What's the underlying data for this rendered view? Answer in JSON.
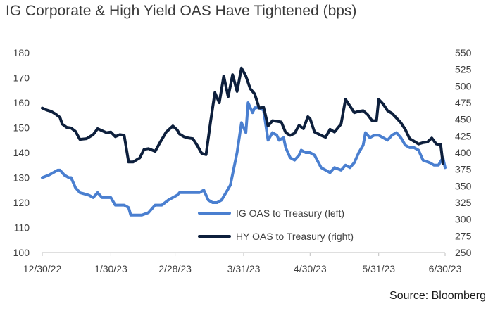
{
  "title": "IG Corporate & High Yield OAS Have Tightened (bps)",
  "source": "Source: Bloomberg",
  "chart_data": {
    "type": "line",
    "x_ticks": [
      "12/30/22",
      "1/30/23",
      "2/28/23",
      "3/31/23",
      "4/30/23",
      "5/31/23",
      "6/30/23"
    ],
    "y_left": {
      "range": [
        100,
        180
      ],
      "ticks": [
        100,
        110,
        120,
        130,
        140,
        150,
        160,
        170,
        180
      ]
    },
    "y_right": {
      "range": [
        250,
        550
      ],
      "ticks": [
        250,
        275,
        300,
        325,
        350,
        375,
        400,
        425,
        450,
        475,
        500,
        525,
        550
      ]
    },
    "grid": false,
    "legend_position": "bottom-center",
    "series": [
      {
        "name": "IG OAS to Treasury (left)",
        "axis": "left",
        "color": "#4a7fd0",
        "points": [
          [
            "12/30/22",
            130
          ],
          [
            "1/2/23",
            131
          ],
          [
            "1/4/23",
            132
          ],
          [
            "1/6/23",
            133
          ],
          [
            "1/7/23",
            133
          ],
          [
            "1/9/23",
            131
          ],
          [
            "1/11/23",
            130
          ],
          [
            "1/12/23",
            130
          ],
          [
            "1/14/23",
            126
          ],
          [
            "1/16/23",
            124
          ],
          [
            "1/20/23",
            123
          ],
          [
            "1/22/23",
            122
          ],
          [
            "1/24/23",
            124
          ],
          [
            "1/26/23",
            122
          ],
          [
            "1/28/23",
            122
          ],
          [
            "1/30/23",
            122
          ],
          [
            "2/1/23",
            119
          ],
          [
            "2/5/23",
            119
          ],
          [
            "2/7/23",
            118
          ],
          [
            "2/8/23",
            115
          ],
          [
            "2/13/23",
            115
          ],
          [
            "2/16/23",
            116
          ],
          [
            "2/19/23",
            119
          ],
          [
            "2/22/23",
            119
          ],
          [
            "2/25/23",
            121
          ],
          [
            "3/1/23",
            123
          ],
          [
            "3/2/23",
            124
          ],
          [
            "3/4/23",
            124
          ],
          [
            "3/7/23",
            124
          ],
          [
            "3/9/23",
            124
          ],
          [
            "3/11/23",
            124
          ],
          [
            "3/13/23",
            125
          ],
          [
            "3/15/23",
            121
          ],
          [
            "3/17/23",
            120
          ],
          [
            "3/19/23",
            120
          ],
          [
            "3/21/23",
            121
          ],
          [
            "3/23/23",
            124
          ],
          [
            "3/25/23",
            127
          ],
          [
            "3/28/23",
            140
          ],
          [
            "3/30/23",
            152
          ],
          [
            "4/1/23",
            148
          ],
          [
            "4/2/23",
            160
          ],
          [
            "4/4/23",
            156
          ],
          [
            "4/5/23",
            158
          ],
          [
            "4/7/23",
            158
          ],
          [
            "4/9/23",
            157
          ],
          [
            "4/11/23",
            145
          ],
          [
            "4/13/23",
            148
          ],
          [
            "4/15/23",
            147
          ],
          [
            "4/16/23",
            145
          ],
          [
            "4/18/23",
            146
          ],
          [
            "4/19/23",
            142
          ],
          [
            "4/21/23",
            138
          ],
          [
            "4/23/23",
            137
          ],
          [
            "4/25/23",
            139
          ],
          [
            "4/26/23",
            141
          ],
          [
            "4/28/23",
            140
          ],
          [
            "4/30/23",
            140
          ],
          [
            "5/2/23",
            139
          ],
          [
            "5/5/23",
            134
          ],
          [
            "5/7/23",
            133
          ],
          [
            "5/9/23",
            132
          ],
          [
            "5/11/23",
            134
          ],
          [
            "5/14/23",
            133
          ],
          [
            "5/16/23",
            135
          ],
          [
            "5/18/23",
            134
          ],
          [
            "5/20/23",
            136
          ],
          [
            "5/22/23",
            140
          ],
          [
            "5/24/23",
            143
          ],
          [
            "5/25/23",
            148
          ],
          [
            "5/27/23",
            146
          ],
          [
            "5/29/23",
            147
          ],
          [
            "5/31/23",
            147
          ],
          [
            "6/2/23",
            146
          ],
          [
            "6/4/23",
            145
          ],
          [
            "6/6/23",
            147
          ],
          [
            "6/8/23",
            148
          ],
          [
            "6/10/23",
            146
          ],
          [
            "6/12/23",
            143
          ],
          [
            "6/14/23",
            142
          ],
          [
            "6/16/23",
            142
          ],
          [
            "6/18/23",
            141
          ],
          [
            "6/20/23",
            137
          ],
          [
            "6/23/23",
            136
          ],
          [
            "6/25/23",
            135
          ],
          [
            "6/27/23",
            135
          ],
          [
            "6/29/23",
            138
          ],
          [
            "6/30/23",
            134
          ]
        ]
      },
      {
        "name": "HY OAS to Treasury (right)",
        "axis": "right",
        "color": "#0d1f3c",
        "points": [
          [
            "12/30/22",
            467
          ],
          [
            "1/1/23",
            464
          ],
          [
            "1/3/23",
            462
          ],
          [
            "1/5/23",
            458
          ],
          [
            "1/7/23",
            453
          ],
          [
            "1/8/23",
            443
          ],
          [
            "1/10/23",
            438
          ],
          [
            "1/12/23",
            437
          ],
          [
            "1/14/23",
            432
          ],
          [
            "1/16/23",
            420
          ],
          [
            "1/19/23",
            421
          ],
          [
            "1/22/23",
            427
          ],
          [
            "1/24/23",
            436
          ],
          [
            "1/26/23",
            433
          ],
          [
            "1/28/23",
            430
          ],
          [
            "1/30/23",
            431
          ],
          [
            "2/1/23",
            424
          ],
          [
            "2/3/23",
            427
          ],
          [
            "2/5/23",
            426
          ],
          [
            "2/7/23",
            386
          ],
          [
            "2/9/23",
            386
          ],
          [
            "2/12/23",
            392
          ],
          [
            "2/14/23",
            405
          ],
          [
            "2/16/23",
            406
          ],
          [
            "2/19/23",
            402
          ],
          [
            "2/21/23",
            414
          ],
          [
            "2/24/23",
            431
          ],
          [
            "2/27/23",
            440
          ],
          [
            "3/1/23",
            434
          ],
          [
            "3/2/23",
            428
          ],
          [
            "3/4/23",
            424
          ],
          [
            "3/6/23",
            422
          ],
          [
            "3/8/23",
            421
          ],
          [
            "3/10/23",
            411
          ],
          [
            "3/12/23",
            399
          ],
          [
            "3/14/23",
            397
          ],
          [
            "3/16/23",
            446
          ],
          [
            "3/18/23",
            490
          ],
          [
            "3/20/23",
            475
          ],
          [
            "3/22/23",
            515
          ],
          [
            "3/24/23",
            484
          ],
          [
            "3/26/23",
            517
          ],
          [
            "3/28/23",
            492
          ],
          [
            "3/30/23",
            527
          ],
          [
            "4/1/23",
            515
          ],
          [
            "4/3/23",
            496
          ],
          [
            "4/5/23",
            488
          ],
          [
            "4/7/23",
            467
          ],
          [
            "4/9/23",
            468
          ],
          [
            "4/11/23",
            440
          ],
          [
            "4/13/23",
            448
          ],
          [
            "4/15/23",
            447
          ],
          [
            "4/17/23",
            446
          ],
          [
            "4/19/23",
            430
          ],
          [
            "4/21/23",
            426
          ],
          [
            "4/23/23",
            429
          ],
          [
            "4/25/23",
            441
          ],
          [
            "4/27/23",
            436
          ],
          [
            "4/29/23",
            454
          ],
          [
            "4/30/23",
            451
          ],
          [
            "5/2/23",
            431
          ],
          [
            "5/5/23",
            426
          ],
          [
            "5/7/23",
            423
          ],
          [
            "5/9/23",
            435
          ],
          [
            "5/11/23",
            431
          ],
          [
            "5/14/23",
            443
          ],
          [
            "5/16/23",
            480
          ],
          [
            "5/18/23",
            470
          ],
          [
            "5/20/23",
            460
          ],
          [
            "5/22/23",
            462
          ],
          [
            "5/24/23",
            463
          ],
          [
            "5/26/23",
            457
          ],
          [
            "5/28/23",
            448
          ],
          [
            "5/30/23",
            448
          ],
          [
            "5/31/23",
            480
          ],
          [
            "6/2/23",
            473
          ],
          [
            "6/4/23",
            463
          ],
          [
            "6/6/23",
            459
          ],
          [
            "6/8/23",
            452
          ],
          [
            "6/10/23",
            445
          ],
          [
            "6/12/23",
            435
          ],
          [
            "6/14/23",
            421
          ],
          [
            "6/16/23",
            417
          ],
          [
            "6/18/23",
            413
          ],
          [
            "6/20/23",
            415
          ],
          [
            "6/22/23",
            416
          ],
          [
            "6/24/23",
            422
          ],
          [
            "6/26/23",
            413
          ],
          [
            "6/28/23",
            412
          ],
          [
            "6/29/23",
            384
          ]
        ]
      }
    ]
  }
}
